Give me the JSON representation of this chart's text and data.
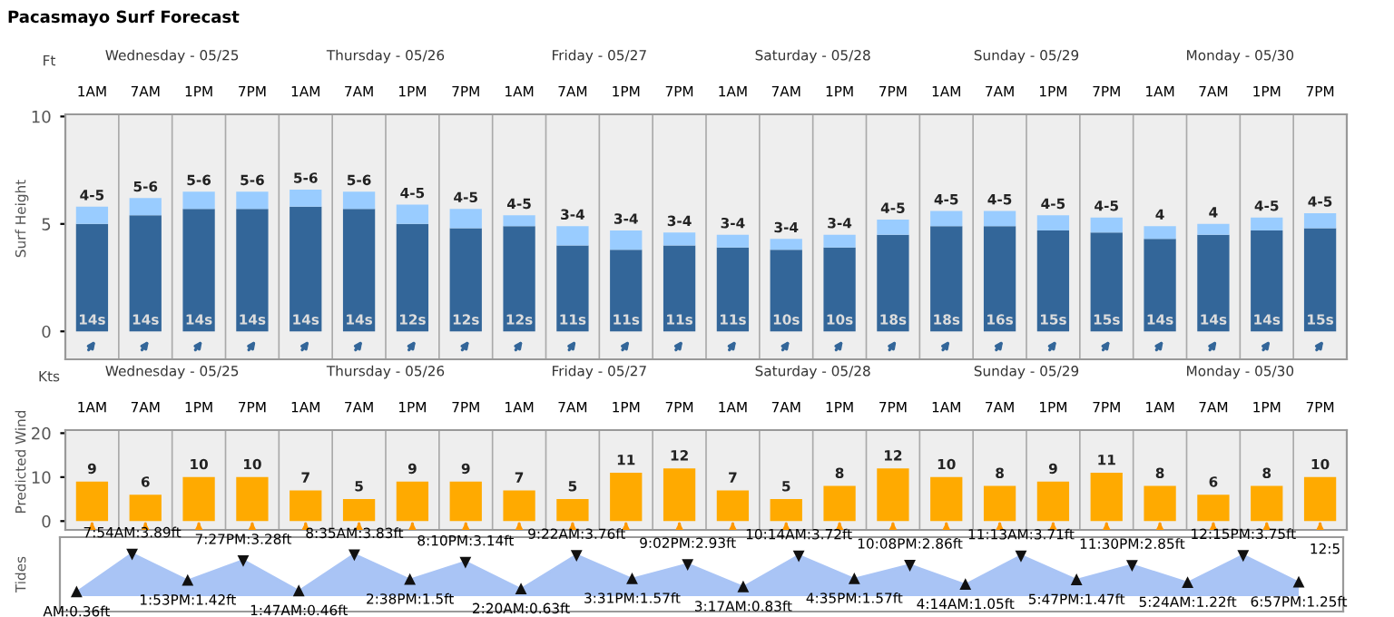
{
  "chart_data": [
    {
      "type": "bar",
      "title": "Pacasmayo Surf Forecast",
      "ylabel": "Surf Height",
      "stacked": true,
      "categories": [
        "1AM",
        "7AM",
        "1PM",
        "7PM",
        "1AM",
        "7AM",
        "1PM",
        "7PM",
        "1AM",
        "7AM",
        "1PM",
        "7PM",
        "1AM",
        "7AM",
        "1PM",
        "7PM",
        "1AM",
        "7AM",
        "1PM",
        "7PM",
        "1AM",
        "7AM",
        "1PM",
        "7PM"
      ],
      "series": [
        {
          "color": "#336699",
          "values": [
            5.0,
            5.4,
            5.7,
            5.7,
            5.8,
            5.7,
            5.0,
            4.8,
            4.9,
            4.0,
            3.8,
            4.0,
            3.9,
            3.8,
            3.9,
            4.5,
            4.9,
            4.9,
            4.7,
            4.6,
            4.3,
            4.5,
            4.7,
            4.8
          ]
        },
        {
          "color": "#99ccff",
          "values": [
            0.8,
            0.8,
            0.8,
            0.8,
            0.8,
            0.8,
            0.9,
            0.9,
            0.5,
            0.9,
            0.9,
            0.6,
            0.6,
            0.5,
            0.6,
            0.7,
            0.7,
            0.7,
            0.7,
            0.7,
            0.6,
            0.5,
            0.6,
            0.7
          ]
        }
      ],
      "totals": [
        "4-5",
        "5-6",
        "5-6",
        "5-6",
        "5-6",
        "5-6",
        "4-5",
        "4-5",
        "4-5",
        "3-4",
        "3-4",
        "3-4",
        "3-4",
        "3-4",
        "3-4",
        "4-5",
        "4-5",
        "4-5",
        "4-5",
        "4-5",
        "4",
        "4",
        "4-5",
        "4-5"
      ],
      "ylim": [
        -1.3,
        10.1
      ],
      "yticks": [
        0,
        5,
        10
      ],
      "annotations": [
        "Ft",
        "Wednesday - 05/25",
        "Thursday - 05/26",
        "Friday - 05/27",
        "Saturday - 05/28",
        "Sunday - 05/29",
        "Monday - 05/30",
        "14s",
        "14s",
        "14s",
        "14s",
        "14s",
        "14s",
        "12s",
        "12s",
        "12s",
        "11s",
        "11s",
        "11s",
        "11s",
        "10s",
        "10s",
        "18s",
        "18s",
        "16s",
        "15s",
        "15s",
        "14s",
        "14s",
        "14s",
        "15s"
      ]
    },
    {
      "type": "bar",
      "ylabel": "Predicted Wind",
      "data_labels": true,
      "categories": [
        "1AM",
        "7AM",
        "1PM",
        "7PM",
        "1AM",
        "7AM",
        "1PM",
        "7PM",
        "1AM",
        "7AM",
        "1PM",
        "7PM",
        "1AM",
        "7AM",
        "1PM",
        "7PM",
        "1AM",
        "7AM",
        "1PM",
        "7PM",
        "1AM",
        "7AM",
        "1PM",
        "7PM"
      ],
      "series": [
        {
          "color": "#ffaa00",
          "values": [
            9,
            6,
            10,
            10,
            7,
            5,
            9,
            9,
            7,
            5,
            11,
            12,
            7,
            5,
            8,
            12,
            10,
            8,
            9,
            11,
            8,
            6,
            8,
            10
          ]
        }
      ],
      "ylim": [
        -2,
        20.7
      ],
      "yticks": [
        0,
        10,
        20
      ],
      "annotations": [
        "Kts",
        "Wednesday - 05/25",
        "Thursday - 05/26",
        "Friday - 05/27",
        "Saturday - 05/28",
        "Sunday - 05/29",
        "Monday - 05/30"
      ]
    },
    {
      "type": "area",
      "ylabel": "Tides",
      "marker": "triangle",
      "categories": [
        null,
        null,
        null,
        null,
        null,
        null,
        null,
        null,
        null,
        null,
        null,
        null,
        null,
        null,
        null,
        null,
        null,
        null,
        null,
        null,
        null,
        null,
        null
      ],
      "series": [
        {
          "color": "#a9c4f5",
          "values": [
            0.36,
            3.89,
            1.42,
            3.28,
            0.46,
            3.83,
            1.5,
            3.14,
            0.63,
            3.76,
            1.57,
            2.93,
            0.83,
            3.72,
            1.57,
            2.86,
            1.05,
            3.71,
            1.47,
            2.85,
            1.22,
            3.75,
            1.25
          ],
          "value_labels": [
            "AM:0.36ft",
            "7:54AM:3.89ft",
            "1:53PM:1.42ft",
            "7:27PM:3.28ft",
            "1:47AM:0.46ft",
            "8:35AM:3.83ft",
            "2:38PM:1.5ft",
            "8:10PM:3.14ft",
            "2:20AM:0.63ft",
            "9:22AM:3.76ft",
            "3:31PM:1.57ft",
            "9:02PM:2.93ft",
            "3:17AM:0.83ft",
            "10:14AM:3.72ft",
            "4:35PM:1.57ft",
            "10:08PM:2.86ft",
            "4:14AM:1.05ft",
            "11:13AM:3.71ft",
            "5:47PM:1.47ft",
            "11:30PM:2.85ft",
            "5:24AM:1.22ft",
            "12:15PM:3.75ft",
            "6:57PM:1.25ft"
          ]
        }
      ],
      "ylim": [
        -1.4,
        5.4
      ],
      "annotations": [
        "12:5"
      ]
    }
  ]
}
